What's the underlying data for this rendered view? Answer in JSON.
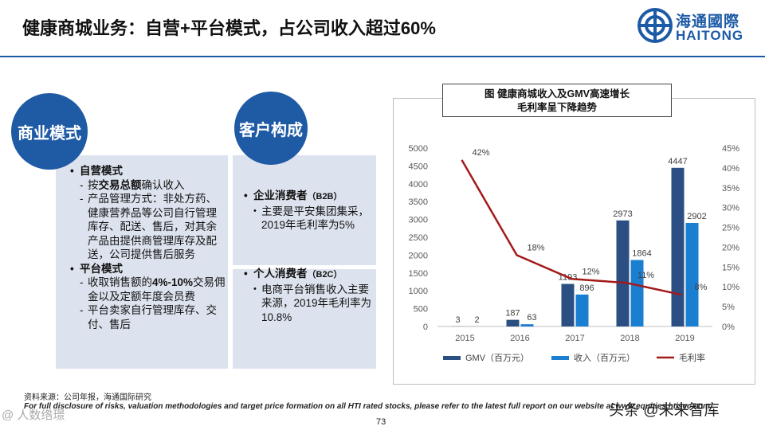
{
  "header": {
    "title": "健康商城业务：自营+平台模式，占公司收入超过60%"
  },
  "logo": {
    "name_cn": "海通國際",
    "name_en": "HAITONG"
  },
  "left": {
    "business_model_label": "商业模式",
    "customer_label": "客户构成",
    "self_operated": {
      "heading": "自营模式",
      "line1_pre": "按",
      "line1_bold": "交易总额",
      "line1_post": "确认收入",
      "line2": "产品管理方式：非处方药、健康营养品等公司自行管理库存、配送、售后，对其余产品由提供商管理库存及配送，公司提供售后服务"
    },
    "platform": {
      "heading": "平台模式",
      "line1_pre": "收取销售额的",
      "line1_bold": "4%-10%",
      "line1_post": "交易佣金以及定额年度会员费",
      "line2": "平台卖家自行管理库存、交付、售后"
    },
    "b2b": {
      "heading": "企业消费者",
      "tag": "（B2B）",
      "text": "主要是平安集团集采，2019年毛利率为5%"
    },
    "b2c": {
      "heading": "个人消费者",
      "tag": "（B2C）",
      "text": "电商平台销售收入主要来源，2019年毛利率为10.8%"
    }
  },
  "chart_title": {
    "line1": "图 健康商城收入及GMV高速增长",
    "line2": "毛利率呈下降趋势"
  },
  "chart_data": {
    "type": "bar",
    "title": "图 健康商城收入及GMV高速增长 毛利率呈下降趋势",
    "categories": [
      "2015",
      "2016",
      "2017",
      "2018",
      "2019"
    ],
    "series": [
      {
        "name": "GMV（百万元）",
        "type": "bar",
        "axis": "left",
        "color": "#2b4f82",
        "values": [
          3,
          187,
          1193,
          2973,
          4447
        ],
        "labels": [
          "3",
          "187",
          "1193",
          "2973",
          "4447"
        ]
      },
      {
        "name": "收入（百万元）",
        "type": "bar",
        "axis": "left",
        "color": "#1a7fd1",
        "values": [
          2,
          63,
          896,
          1864,
          2902
        ],
        "labels": [
          "2",
          "63",
          "896",
          "1864",
          "2902"
        ]
      },
      {
        "name": "毛利率",
        "type": "line",
        "axis": "right",
        "color": "#a31a1a",
        "values": [
          42,
          18,
          12,
          11,
          8
        ],
        "labels": [
          "42%",
          "18%",
          "12%",
          "11%",
          "8%"
        ]
      }
    ],
    "y_left": {
      "min": 0,
      "max": 5000,
      "ticks": [
        "0",
        "500",
        "1000",
        "1500",
        "2000",
        "2500",
        "3000",
        "3500",
        "4000",
        "4500",
        "5000"
      ]
    },
    "y_right": {
      "min": 0,
      "max": 45,
      "ticks": [
        "0%",
        "5%",
        "10%",
        "15%",
        "20%",
        "25%",
        "30%",
        "35%",
        "40%",
        "45%"
      ]
    },
    "legend_position": "bottom",
    "grid": false
  },
  "footer": {
    "source": "资料来源：公司年报，海通国际研究",
    "disclaimer": "For full disclosure of risks, valuation methodologies and target price formation on all HTI rated stocks, please refer to the latest full report on our website at www.equities.htisec.com",
    "page": "73",
    "watermark_left": "@ 人数绺璟",
    "watermark_right": "头条 @未来智库"
  }
}
